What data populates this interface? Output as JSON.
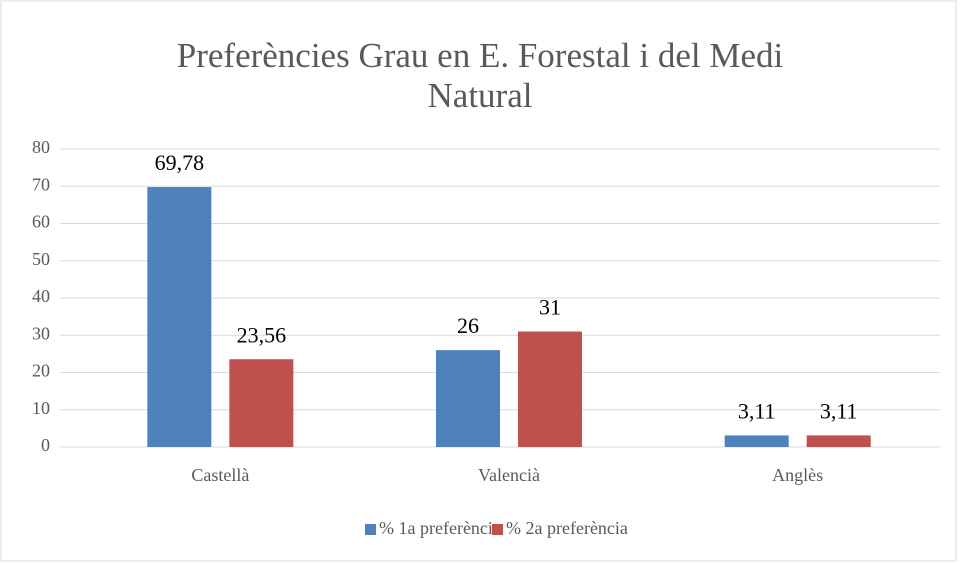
{
  "chart_data": {
    "type": "bar",
    "title": "Preferències Grau en E. Forestal i del Medi Natural",
    "categories": [
      "Castellà",
      "Valencià",
      "Anglès"
    ],
    "series": [
      {
        "name": "% 1a preferència",
        "color": "#4f81bd",
        "values": [
          69.78,
          26,
          3.11
        ],
        "value_labels": [
          "69,78",
          "26",
          "3,11"
        ]
      },
      {
        "name": "% 2a preferència",
        "color": "#c0504d",
        "values": [
          23.56,
          31,
          3.11
        ],
        "value_labels": [
          "23,56",
          "31",
          "3,11"
        ]
      }
    ],
    "ylim": [
      0,
      80
    ],
    "yticks": [
      0,
      10,
      20,
      30,
      40,
      50,
      60,
      70,
      80
    ],
    "grid": true,
    "legend": "bottom"
  }
}
